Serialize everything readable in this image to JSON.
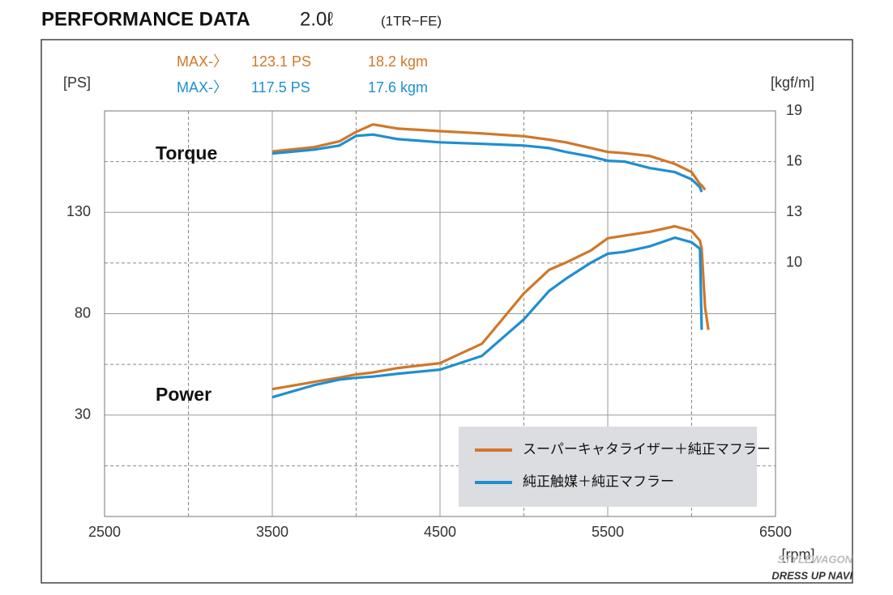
{
  "chart_data": {
    "type": "line",
    "title": "PERFORMANCE DATA",
    "subtitle": "2.0ℓ",
    "engine": "(1TR−FE)",
    "y_label": "[PS]",
    "y2_label": "[kgf/m]",
    "x_label": "[rpm]",
    "torque_label": "Torque",
    "power_label": "Power",
    "watermark": [
      "STYLEWAGON",
      "DRESS UP NAVI"
    ],
    "xlim": [
      2500,
      6500
    ],
    "xticks": [
      2500,
      3500,
      4500,
      5500,
      6500
    ],
    "minor_xticks": [
      3000,
      4000,
      5000,
      6000
    ],
    "ylim": [
      -20,
      180
    ],
    "yticks": [
      30,
      80,
      130
    ],
    "minor_yticks": [
      5,
      55,
      105,
      155
    ],
    "y2lim": [
      -5,
      19
    ],
    "y2ticks": [
      10,
      13,
      16,
      19
    ],
    "grid": true,
    "x": [
      3500,
      3750,
      3900,
      4000,
      4100,
      4250,
      4500,
      4750,
      5000,
      5150,
      5250,
      5400,
      5500,
      5600,
      5750,
      5900,
      6000,
      6050,
      6060,
      6080,
      6100
    ],
    "series": [
      {
        "name": "スーパーキャタライザー＋純正マフラー",
        "color": "#d0782a",
        "max_label": "MAX-〉",
        "max_power": "123.1 PS",
        "max_torque": "18.2 kgm",
        "power": [
          42.8,
          46.4,
          48.5,
          50,
          51,
          53.2,
          55.6,
          65.2,
          90,
          101.6,
          105.2,
          111.2,
          117.2,
          118.5,
          120.4,
          123.1,
          120.8,
          116,
          112,
          83.2,
          72
        ],
        "torque": [
          16.6,
          16.86,
          17.2,
          17.76,
          18.2,
          17.95,
          17.8,
          17.67,
          17.5,
          17.3,
          17.14,
          16.8,
          16.57,
          16.5,
          16.33,
          15.86,
          15.38,
          14.67,
          14.6,
          14.33,
          null
        ]
      },
      {
        "name": "純正触媒＋純正マフラー",
        "color": "#1f8fd0",
        "max_label": "MAX-〉",
        "max_power": "117.5 PS",
        "max_torque": "17.6 kgm",
        "power": [
          38.8,
          44.8,
          47.5,
          48.4,
          49,
          50.4,
          52.4,
          59.2,
          77.2,
          91.2,
          97.2,
          105.2,
          109.6,
          110.5,
          113.2,
          117.5,
          115.2,
          112,
          72,
          null,
          null
        ],
        "torque": [
          16.48,
          16.71,
          16.95,
          17.52,
          17.6,
          17.33,
          17.14,
          17.05,
          16.95,
          16.8,
          16.57,
          16.3,
          16.05,
          16.0,
          15.62,
          15.38,
          14.95,
          14.48,
          14.2,
          null,
          null
        ]
      }
    ]
  }
}
